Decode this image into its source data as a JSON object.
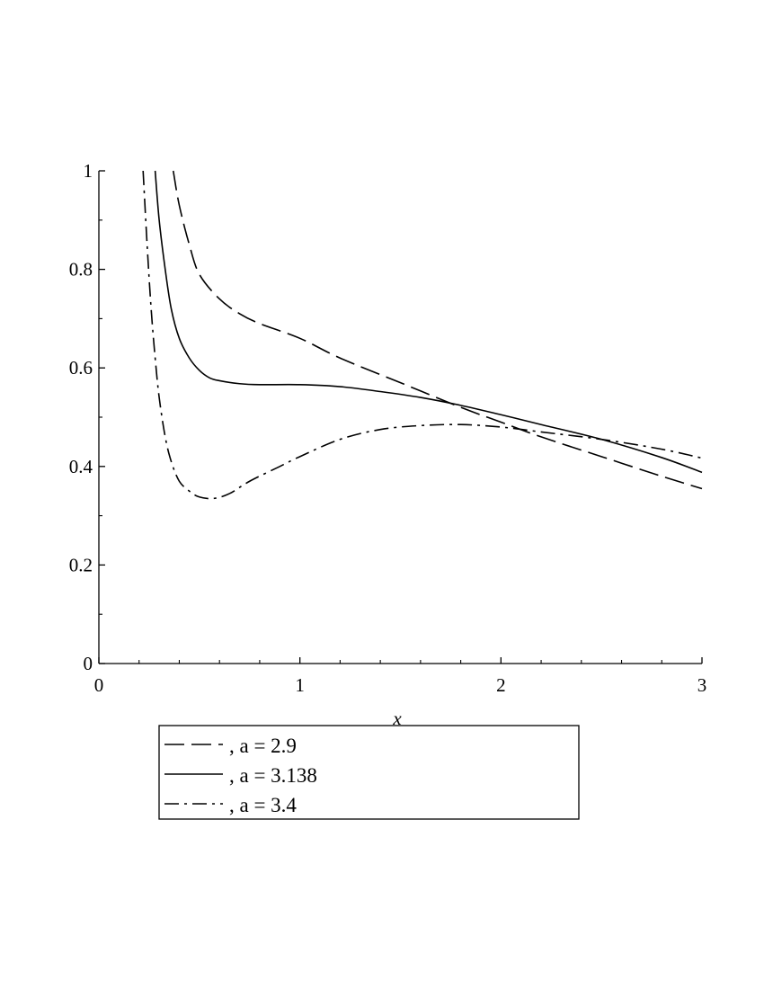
{
  "chart_data": {
    "type": "line",
    "title": "",
    "xlabel": "x",
    "ylabel": "",
    "xlim": [
      0,
      3
    ],
    "ylim": [
      0,
      1
    ],
    "x_ticks": [
      {
        "value": 0,
        "label": "0"
      },
      {
        "value": 1,
        "label": "1"
      },
      {
        "value": 2,
        "label": "2"
      },
      {
        "value": 3,
        "label": "3"
      }
    ],
    "y_ticks": [
      {
        "value": 0,
        "label": "0"
      },
      {
        "value": 0.2,
        "label": "0.2"
      },
      {
        "value": 0.4,
        "label": "0.4"
      },
      {
        "value": 0.6,
        "label": "0.6"
      },
      {
        "value": 0.8,
        "label": "0.8"
      },
      {
        "value": 1,
        "label": "1"
      }
    ],
    "grid": false,
    "legend_position": "bottom",
    "line_color": "#000000",
    "series": [
      {
        "name": ", a = 2.9",
        "style": "dashed",
        "x": [
          0.37,
          0.4,
          0.45,
          0.5,
          0.6,
          0.7,
          0.8,
          1.0,
          1.2,
          1.5,
          1.8,
          2.0,
          2.2,
          2.5,
          2.8,
          3.0
        ],
        "y": [
          1.0,
          0.93,
          0.85,
          0.79,
          0.74,
          0.71,
          0.69,
          0.66,
          0.62,
          0.57,
          0.52,
          0.49,
          0.46,
          0.42,
          0.38,
          0.355
        ]
      },
      {
        "name": ", a = 3.138",
        "style": "solid",
        "x": [
          0.28,
          0.3,
          0.33,
          0.36,
          0.4,
          0.45,
          0.5,
          0.55,
          0.6,
          0.7,
          0.8,
          1.0,
          1.2,
          1.4,
          1.6,
          1.8,
          2.0,
          2.2,
          2.5,
          2.8,
          3.0
        ],
        "y": [
          1.0,
          0.9,
          0.8,
          0.72,
          0.66,
          0.62,
          0.595,
          0.58,
          0.574,
          0.568,
          0.566,
          0.566,
          0.562,
          0.552,
          0.54,
          0.524,
          0.505,
          0.485,
          0.455,
          0.418,
          0.388
        ]
      },
      {
        "name": ", a = 3.4",
        "style": "dashdot",
        "x": [
          0.22,
          0.24,
          0.26,
          0.28,
          0.3,
          0.33,
          0.36,
          0.4,
          0.45,
          0.5,
          0.57,
          0.65,
          0.75,
          0.9,
          1.0,
          1.2,
          1.4,
          1.6,
          1.8,
          2.0,
          2.2,
          2.5,
          2.8,
          3.0
        ],
        "y": [
          1.0,
          0.85,
          0.72,
          0.62,
          0.54,
          0.46,
          0.41,
          0.37,
          0.35,
          0.338,
          0.335,
          0.345,
          0.37,
          0.4,
          0.42,
          0.455,
          0.475,
          0.483,
          0.485,
          0.48,
          0.47,
          0.455,
          0.435,
          0.417
        ]
      }
    ]
  }
}
